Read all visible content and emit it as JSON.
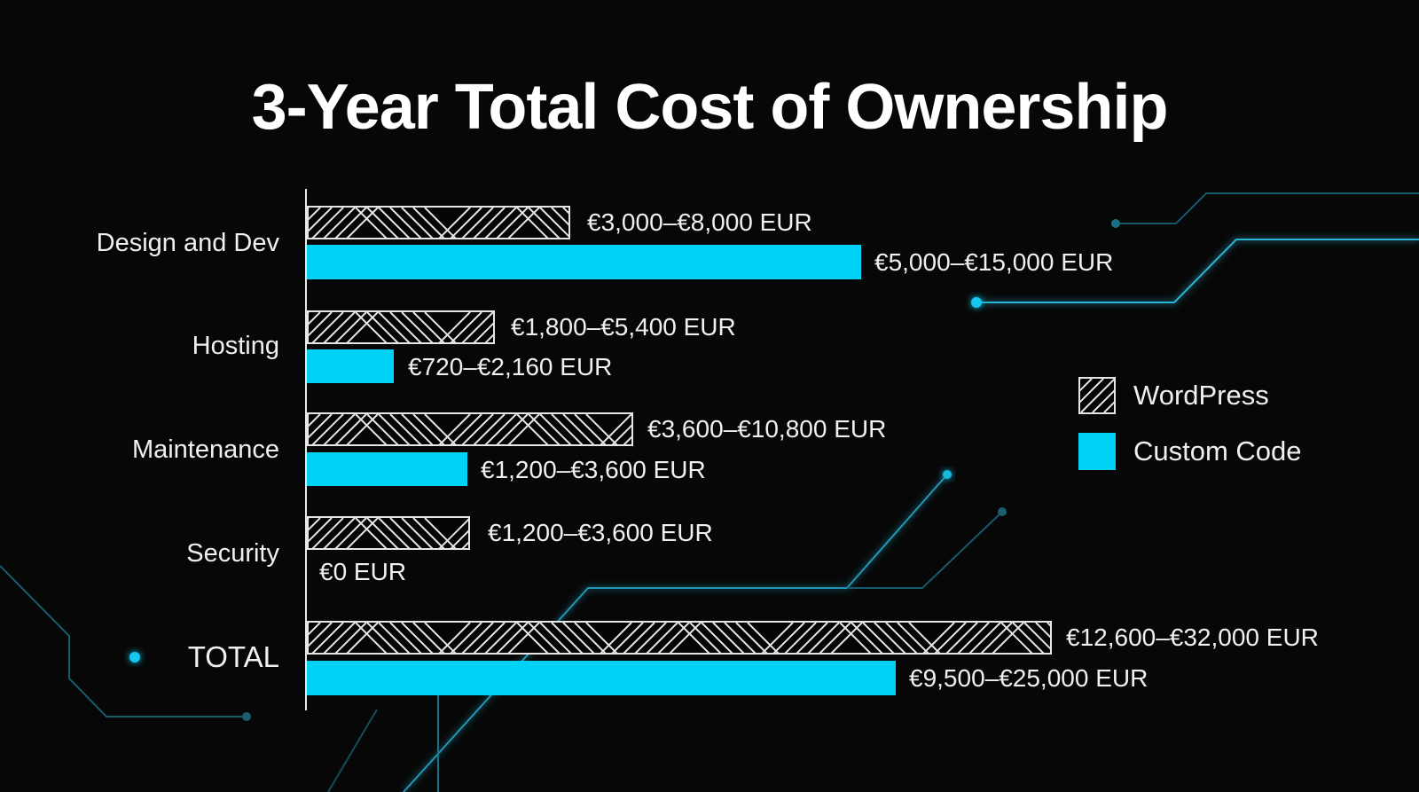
{
  "title": "3-Year Total Cost of Ownership",
  "legend": [
    {
      "name": "WordPress",
      "style": "hatched",
      "color": "#e6e6e6"
    },
    {
      "name": "Custom Code",
      "style": "solid",
      "color": "#00d2f5"
    }
  ],
  "colors": {
    "background": "#070707",
    "accent": "#00d2f5",
    "circuit": "#1fa9c8"
  },
  "rows": [
    {
      "category": "Design and Dev",
      "wordpress_label": "€3,000–€8,000 EUR",
      "custom_label": "€5,000–€15,000 EUR"
    },
    {
      "category": "Hosting",
      "wordpress_label": "€1,800–€5,400 EUR",
      "custom_label": "€720–€2,160 EUR"
    },
    {
      "category": "Maintenance",
      "wordpress_label": "€3,600–€10,800 EUR",
      "custom_label": "€1,200–€3,600 EUR"
    },
    {
      "category": "Security",
      "wordpress_label": "€1,200–€3,600 EUR",
      "custom_label": "€0 EUR"
    },
    {
      "category": "TOTAL",
      "wordpress_label": "€12,600–€32,000 EUR",
      "custom_label": "€9,500–€25,000 EUR"
    }
  ],
  "chart_data": {
    "type": "bar",
    "orientation": "horizontal",
    "title": "3-Year Total Cost of Ownership",
    "xlabel": "",
    "ylabel": "",
    "categories": [
      "Design and Dev",
      "Hosting",
      "Maintenance",
      "Security",
      "TOTAL"
    ],
    "series": [
      {
        "name": "WordPress",
        "ranges": [
          [
            3000,
            8000
          ],
          [
            1800,
            5400
          ],
          [
            3600,
            10800
          ],
          [
            1200,
            3600
          ],
          [
            12600,
            32000
          ]
        ],
        "labels": [
          "€3,000–€8,000 EUR",
          "€1,800–€5,400 EUR",
          "€3,600–€10,800 EUR",
          "€1,200–€3,600 EUR",
          "€12,600–€32,000 EUR"
        ]
      },
      {
        "name": "Custom Code",
        "ranges": [
          [
            5000,
            15000
          ],
          [
            720,
            2160
          ],
          [
            1200,
            3600
          ],
          [
            0,
            0
          ],
          [
            9500,
            25000
          ]
        ],
        "labels": [
          "€5,000–€15,000 EUR",
          "€720–€2,160 EUR",
          "€1,200–€3,600 EUR",
          "€0 EUR",
          "€9,500–€25,000 EUR"
        ]
      }
    ],
    "grid": false,
    "legend_position": "right",
    "currency": "EUR"
  }
}
